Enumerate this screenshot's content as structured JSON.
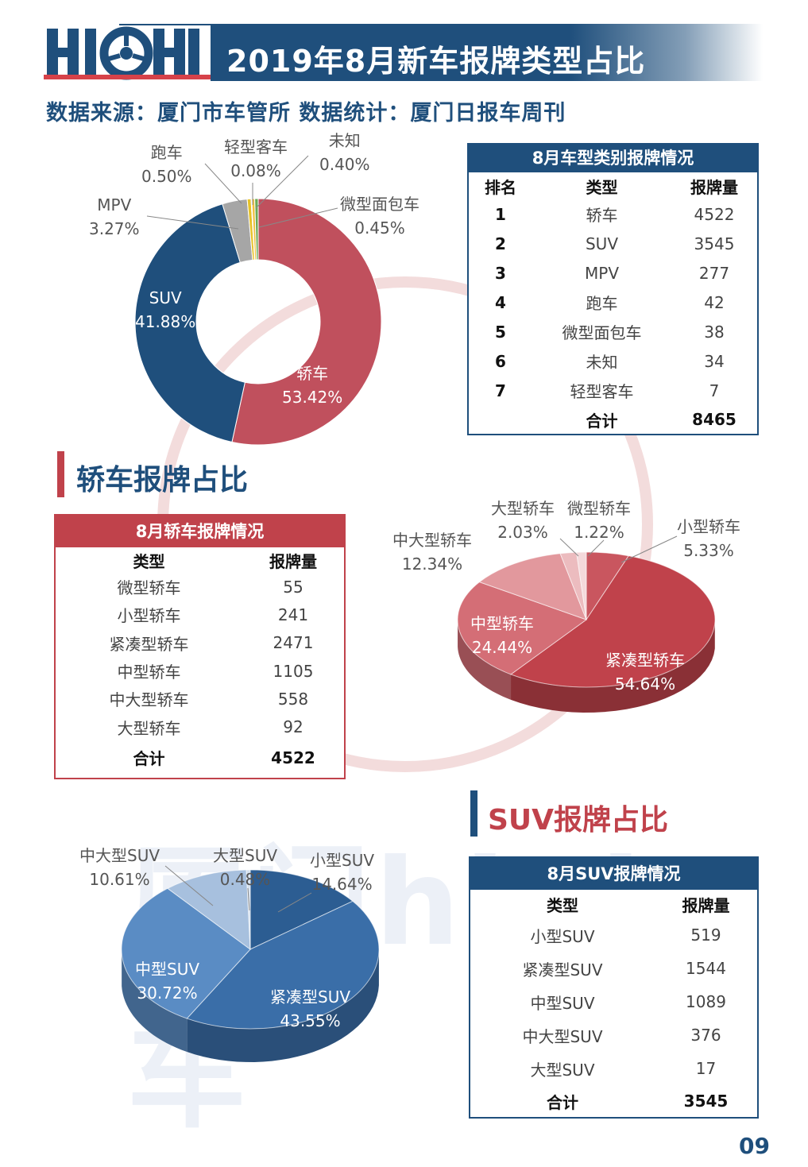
{
  "header": {
    "logo_text": "HIGH",
    "title": "2019年8月新车报牌类型占比",
    "subtitle": "数据来源：厦门市车管所  数据统计：厦门日报车周刊"
  },
  "watermark": {
    "text": "厦门high车"
  },
  "overall_table": {
    "title": "8月车型类别报牌情况",
    "headers": [
      "排名",
      "类型",
      "报牌量"
    ],
    "rows": [
      [
        "1",
        "轿车",
        "4522"
      ],
      [
        "2",
        "SUV",
        "3545"
      ],
      [
        "3",
        "MPV",
        "277"
      ],
      [
        "4",
        "跑车",
        "42"
      ],
      [
        "5",
        "微型面包车",
        "38"
      ],
      [
        "6",
        "未知",
        "34"
      ],
      [
        "7",
        "轻型客车",
        "7"
      ]
    ],
    "total_label": "合计",
    "total_value": "8465"
  },
  "sedan_section": {
    "title": "轿车报牌占比"
  },
  "sedan_table": {
    "title": "8月轿车报牌情况",
    "headers": [
      "类型",
      "报牌量"
    ],
    "rows": [
      [
        "微型轿车",
        "55"
      ],
      [
        "小型轿车",
        "241"
      ],
      [
        "紧凑型轿车",
        "2471"
      ],
      [
        "中型轿车",
        "1105"
      ],
      [
        "中大型轿车",
        "558"
      ],
      [
        "大型轿车",
        "92"
      ]
    ],
    "total_label": "合计",
    "total_value": "4522"
  },
  "suv_section": {
    "title": "SUV报牌占比"
  },
  "suv_table": {
    "title": "8月SUV报牌情况",
    "headers": [
      "类型",
      "报牌量"
    ],
    "rows": [
      [
        "小型SUV",
        "519"
      ],
      [
        "紧凑型SUV",
        "1544"
      ],
      [
        "中型SUV",
        "1089"
      ],
      [
        "中大型SUV",
        "376"
      ],
      [
        "大型SUV",
        "17"
      ]
    ],
    "total_label": "合计",
    "total_value": "3545"
  },
  "page_number": "09",
  "chart_data": [
    {
      "type": "pie",
      "variant": "donut",
      "categories": [
        "轿车",
        "SUV",
        "MPV",
        "跑车",
        "轻型客车",
        "未知",
        "微型面包车"
      ],
      "values": [
        53.42,
        41.88,
        3.27,
        0.5,
        0.08,
        0.4,
        0.45
      ],
      "labels": [
        "53.42%",
        "41.88%",
        "3.27%",
        "0.50%",
        "0.08%",
        "0.40%",
        "0.45%"
      ],
      "colors": [
        "#c0505d",
        "#1f4f7c",
        "#a6a6a6",
        "#e6c229",
        "#7aa6cf",
        "#f0c040",
        "#6aaa55"
      ]
    },
    {
      "type": "pie",
      "variant": "3d",
      "categories": [
        "小型轿车",
        "紧凑型轿车",
        "中型轿车",
        "中大型轿车",
        "大型轿车",
        "微型轿车"
      ],
      "values": [
        5.33,
        54.64,
        24.44,
        12.34,
        2.03,
        1.22
      ],
      "labels": [
        "5.33%",
        "54.64%",
        "24.44%",
        "12.34%",
        "2.03%",
        "1.22%"
      ],
      "colors": [
        "#c9565f",
        "#c0424b",
        "#d46e76",
        "#e2989d",
        "#ecbcbf",
        "#f4d9db"
      ]
    },
    {
      "type": "pie",
      "variant": "3d",
      "categories": [
        "小型SUV",
        "紧凑型SUV",
        "中型SUV",
        "中大型SUV",
        "大型SUV"
      ],
      "values": [
        14.64,
        43.55,
        30.72,
        10.61,
        0.48
      ],
      "labels": [
        "14.64%",
        "43.55%",
        "30.72%",
        "10.61%",
        "0.48%"
      ],
      "colors": [
        "#2c5d92",
        "#3a6ea8",
        "#5a8cc4",
        "#a7c0de",
        "#d5e1ef"
      ]
    }
  ]
}
